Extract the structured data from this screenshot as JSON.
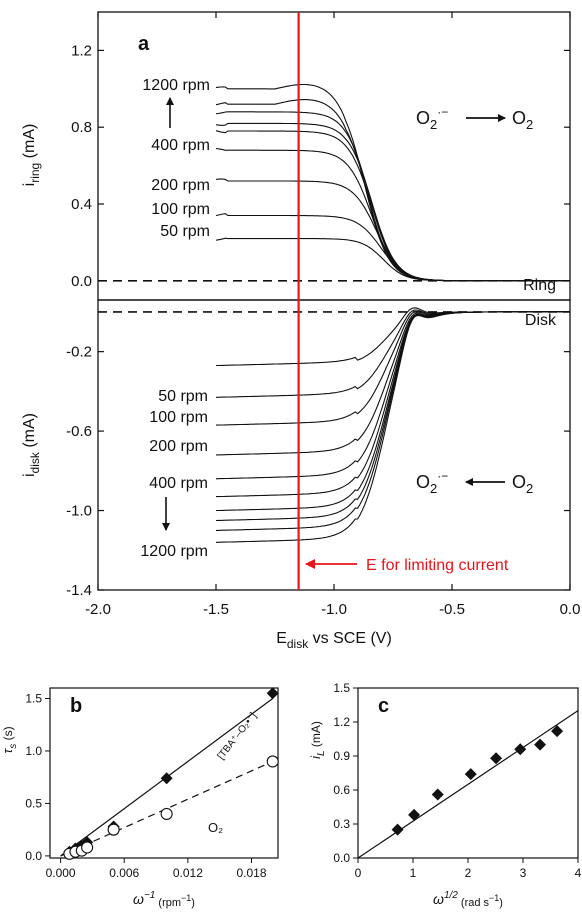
{
  "chart_data": [
    {
      "id": "a",
      "type": "line",
      "panel_label": "a",
      "xlabel_main": "E",
      "xlabel_sub": "disk",
      "xlabel_rest": " vs SCE (V)",
      "xlim": [
        -2.0,
        0.0
      ],
      "xticks": [
        "-2.0",
        "-1.5",
        "-1.0",
        "-0.5",
        "0.0"
      ],
      "vline": {
        "x": -1.15,
        "color": "#e8141b"
      },
      "annotation": "E for limiting current",
      "top": {
        "ylabel_main": "i",
        "ylabel_sub": "ring",
        "ylabel_rest": " (mA)",
        "ylim": [
          -0.1,
          1.4
        ],
        "yticks": [
          "0.0",
          "0.4",
          "0.8",
          "1.2"
        ],
        "corner_label": "Ring",
        "reaction": {
          "left": "O",
          "left_sub": "2",
          "left_sup": "·−",
          "right": "O",
          "right_sub": "2"
        },
        "rate_labels": [
          "1200 rpm",
          "400 rpm",
          "200 rpm",
          "100 rpm",
          "50 rpm"
        ],
        "series": [
          {
            "plateau": 0.22,
            "half": -0.79,
            "width": 0.045
          },
          {
            "plateau": 0.34,
            "half": -0.8,
            "width": 0.05
          },
          {
            "plateau": 0.52,
            "half": -0.82,
            "width": 0.05
          },
          {
            "plateau": 0.68,
            "half": -0.84,
            "width": 0.05
          },
          {
            "plateau": 0.78,
            "half": -0.84,
            "width": 0.05
          },
          {
            "plateau": 0.82,
            "half": -0.84,
            "width": 0.05
          },
          {
            "plateau": 0.88,
            "half": -0.85,
            "width": 0.05
          },
          {
            "plateau": 0.92,
            "half": -0.86,
            "width": 0.05
          },
          {
            "plateau": 1.0,
            "half": -0.87,
            "width": 0.05
          }
        ]
      },
      "bottom": {
        "ylabel_main": "i",
        "ylabel_sub": "disk",
        "ylabel_rest": " (mA)",
        "ylim": [
          -1.4,
          0.06
        ],
        "yticks": [
          "-0.2",
          "-0.6",
          "-1.0",
          "-1.4"
        ],
        "corner_label": "Disk",
        "reaction": {
          "left": "O",
          "left_sub": "2",
          "left_sup": "·−",
          "right": "O",
          "right_sub": "2"
        },
        "rate_labels": [
          "50 rpm",
          "100 rpm",
          "200 rpm",
          "400 rpm",
          "1200 rpm"
        ],
        "series": [
          {
            "plateau": -0.27
          },
          {
            "plateau": -0.43
          },
          {
            "plateau": -0.57
          },
          {
            "plateau": -0.72
          },
          {
            "plateau": -0.84
          },
          {
            "plateau": -0.93
          },
          {
            "plateau": -1.0
          },
          {
            "plateau": -1.05
          },
          {
            "plateau": -1.1
          },
          {
            "plateau": -1.16
          }
        ]
      }
    },
    {
      "id": "b",
      "type": "scatter",
      "panel_label": "b",
      "xlabel_main": "ω",
      "xlabel_sup": "−1",
      "xlabel_rest": " (rpm",
      "xlabel_rest_sup": "−1",
      "xlabel_end": ")",
      "ylabel_main": "τ",
      "ylabel_sub": "s",
      "ylabel_rest": " (s)",
      "xlim": [
        -0.001,
        0.0205
      ],
      "ylim": [
        -0.02,
        1.6
      ],
      "xticks": [
        0.0,
        0.006,
        0.012,
        0.018
      ],
      "xtick_labels": [
        "0.000",
        "0.006",
        "0.012",
        "0.018"
      ],
      "yticks": [
        0.0,
        0.5,
        1.0,
        1.5
      ],
      "ytick_labels": [
        "0.0",
        "0.5",
        "1.0",
        "1.5"
      ],
      "series": [
        {
          "name": "[TBA⁺–O₂•⁻]",
          "marker": "diamond",
          "x": [
            0.00083,
            0.0014,
            0.002,
            0.0025,
            0.005,
            0.01,
            0.02
          ],
          "y": [
            0.04,
            0.07,
            0.1,
            0.13,
            0.28,
            0.74,
            1.55
          ],
          "fit": [
            [
              0.0,
              0.0
            ],
            [
              0.02,
              1.5
            ]
          ],
          "fit_style": "solid"
        },
        {
          "name": "O₂",
          "marker": "circle",
          "x": [
            0.00083,
            0.0014,
            0.002,
            0.0025,
            0.005,
            0.01,
            0.02
          ],
          "y": [
            0.02,
            0.04,
            0.05,
            0.08,
            0.25,
            0.4,
            0.9
          ],
          "fit": [
            [
              0.0,
              0.0
            ],
            [
              0.02,
              0.9
            ]
          ],
          "fit_style": "dashed"
        }
      ]
    },
    {
      "id": "c",
      "type": "scatter",
      "panel_label": "c",
      "xlabel_main": "ω",
      "xlabel_sup": "1/2",
      "xlabel_rest": " (rad s",
      "xlabel_rest_sup": "−1",
      "xlabel_end": ")",
      "ylabel_main": "i",
      "ylabel_sub": "L",
      "ylabel_rest": " (mA)",
      "xlim": [
        0,
        4
      ],
      "ylim": [
        0,
        1.5
      ],
      "xticks": [
        0,
        1,
        2,
        3,
        4
      ],
      "xtick_labels": [
        "0",
        "1",
        "2",
        "3",
        "4"
      ],
      "yticks": [
        0.0,
        0.3,
        0.6,
        0.9,
        1.2,
        1.5
      ],
      "ytick_labels": [
        "0.0",
        "0.3",
        "0.6",
        "0.9",
        "1.2",
        "1.5"
      ],
      "series": [
        {
          "marker": "diamond",
          "x": [
            0.72,
            1.02,
            1.45,
            2.05,
            2.51,
            2.95,
            3.31,
            3.62
          ],
          "y": [
            0.25,
            0.38,
            0.56,
            0.74,
            0.88,
            0.96,
            1.0,
            1.12
          ],
          "fit": [
            [
              0.0,
              0.0
            ],
            [
              4.0,
              1.3
            ]
          ],
          "fit_style": "solid"
        }
      ]
    }
  ]
}
